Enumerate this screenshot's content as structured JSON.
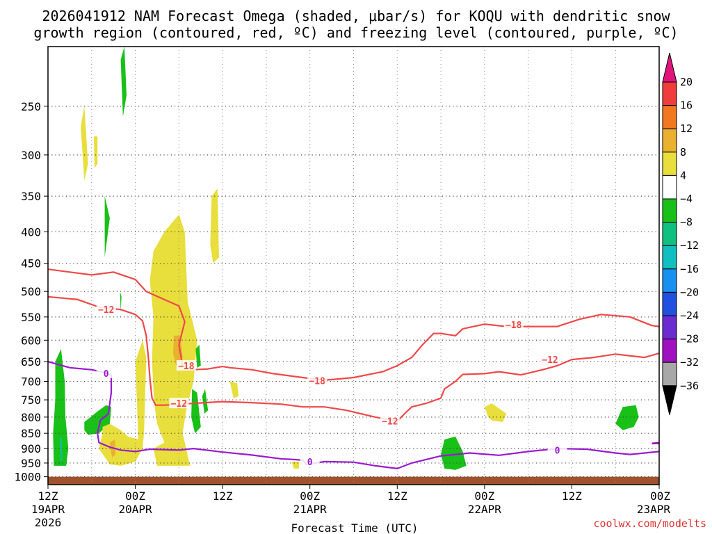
{
  "chart_data": {
    "type": "contour-time-section",
    "title_lines": [
      "2026041912 NAM Forecast Omega (shaded, μbar/s) for KOQU with dendritic snow",
      "growth region (contoured, red, ºC) and freezing level (contoured, purple, ºC)"
    ],
    "xlabel": "Forecast Time (UTC)",
    "x_hours_range": [
      0,
      84
    ],
    "x_ticks": [
      {
        "h": 0,
        "l1": "12Z",
        "l2": "19APR",
        "l3": "2026"
      },
      {
        "h": 12,
        "l1": "00Z",
        "l2": "20APR",
        "l3": ""
      },
      {
        "h": 24,
        "l1": "12Z",
        "l2": "",
        "l3": ""
      },
      {
        "h": 36,
        "l1": "00Z",
        "l2": "21APR",
        "l3": ""
      },
      {
        "h": 48,
        "l1": "12Z",
        "l2": "",
        "l3": ""
      },
      {
        "h": 60,
        "l1": "00Z",
        "l2": "22APR",
        "l3": ""
      },
      {
        "h": 72,
        "l1": "12Z",
        "l2": "",
        "l3": ""
      },
      {
        "h": 84,
        "l1": "00Z",
        "l2": "23APR",
        "l3": ""
      }
    ],
    "y_ticks": [
      250,
      300,
      350,
      400,
      450,
      500,
      550,
      600,
      650,
      700,
      750,
      800,
      850,
      900,
      950,
      1000
    ],
    "y_range_hpa": [
      200,
      1030
    ],
    "colorbar": {
      "labels": [
        "20",
        "16",
        "12",
        "8",
        "4",
        "−4",
        "−8",
        "−12",
        "−16",
        "−20",
        "−24",
        "−28",
        "−32",
        "−36"
      ],
      "colors": [
        "#e0147a",
        "#f03c3c",
        "#f07820",
        "#eab030",
        "#e8de3c",
        "#ffffff",
        "#18c018",
        "#10c080",
        "#10c0c0",
        "#1890f0",
        "#2050e0",
        "#6a2cd0",
        "#a010c0",
        "#a8a8a8",
        "#000000"
      ]
    },
    "contours": {
      "dgz_minus12": {
        "label": "−12",
        "color": "#f04848",
        "segments": [
          [
            [
              0,
              510
            ],
            [
              4,
              515
            ],
            [
              7,
              530
            ],
            [
              10,
              535
            ],
            [
              12,
              545
            ],
            [
              13,
              558
            ],
            [
              13.5,
              590
            ],
            [
              13.8,
              640
            ],
            [
              14,
              690
            ],
            [
              14.3,
              745
            ],
            [
              14.8,
              765
            ],
            [
              16,
              765
            ],
            [
              20,
              760
            ],
            [
              24,
              755
            ],
            [
              28,
              758
            ],
            [
              32,
              762
            ],
            [
              35,
              770
            ],
            [
              38,
              770
            ],
            [
              41,
              780
            ],
            [
              45,
              800
            ],
            [
              48,
              812
            ]
          ],
          [
            [
              48,
              812
            ],
            [
              49,
              790
            ],
            [
              50,
              770
            ],
            [
              52,
              760
            ],
            [
              54,
              745
            ],
            [
              54.5,
              720
            ],
            [
              56,
              700
            ],
            [
              57,
              682
            ],
            [
              60,
              680
            ],
            [
              62,
              675
            ],
            [
              65,
              683
            ],
            [
              68,
              670
            ],
            [
              70,
              660
            ],
            [
              72,
              645
            ],
            [
              75,
              640
            ],
            [
              78,
              632
            ],
            [
              82,
              640
            ],
            [
              84,
              630
            ]
          ]
        ],
        "labels": [
          [
            8,
            535
          ],
          [
            18,
            760
          ],
          [
            47,
            812
          ],
          [
            69,
            645
          ]
        ]
      },
      "dgz_minus18": {
        "label": "−18",
        "color": "#f04848",
        "segments": [
          [
            [
              0,
              460
            ],
            [
              3,
              465
            ],
            [
              6,
              470
            ],
            [
              9,
              465
            ],
            [
              12,
              478
            ],
            [
              13.5,
              500
            ],
            [
              18,
              528
            ],
            [
              18.8,
              560
            ],
            [
              18,
              610
            ],
            [
              18.5,
              660
            ],
            [
              20,
              670
            ],
            [
              22,
              668
            ],
            [
              24,
              662
            ],
            [
              25,
              665
            ],
            [
              28,
              670
            ],
            [
              31,
              680
            ],
            [
              35,
              690
            ],
            [
              38,
              697
            ],
            [
              42,
              690
            ],
            [
              46,
              675
            ],
            [
              48,
              660
            ]
          ],
          [
            [
              48,
              660
            ],
            [
              50,
              640
            ],
            [
              51.5,
              610
            ],
            [
              53,
              585
            ],
            [
              54,
              585
            ],
            [
              56,
              590
            ],
            [
              57,
              575
            ],
            [
              60,
              565
            ],
            [
              63,
              570
            ],
            [
              66,
              570
            ],
            [
              70,
              570
            ],
            [
              73,
              555
            ],
            [
              76,
              545
            ],
            [
              80,
              550
            ],
            [
              83,
              568
            ],
            [
              84,
              570
            ]
          ]
        ],
        "labels": [
          [
            19,
            660
          ],
          [
            37,
            698
          ],
          [
            64,
            566
          ]
        ]
      },
      "freezing_level_0": {
        "label": "0",
        "color": "#9a1ad0",
        "segments": [
          [
            [
              0,
              650
            ],
            [
              3,
              665
            ],
            [
              6,
              670
            ],
            [
              8,
              678
            ],
            [
              8.7,
              685
            ],
            [
              8.7,
              730
            ],
            [
              8.3,
              790
            ],
            [
              7.2,
              810
            ],
            [
              6.8,
              850
            ],
            [
              7,
              880
            ],
            [
              8.5,
              895
            ],
            [
              10,
              905
            ],
            [
              12,
              910
            ],
            [
              14,
              902
            ],
            [
              18,
              905
            ],
            [
              20,
              900
            ],
            [
              24,
              912
            ],
            [
              28,
              922
            ],
            [
              32,
              935
            ],
            [
              34,
              938
            ],
            [
              35,
              940
            ],
            [
              35.5,
              955
            ],
            [
              38,
              945
            ],
            [
              42,
              947
            ],
            [
              45,
              960
            ],
            [
              48,
              970
            ],
            [
              50,
              950
            ],
            [
              54,
              925
            ],
            [
              58,
              915
            ],
            [
              62,
              923
            ],
            [
              66,
              910
            ],
            [
              70,
              900
            ],
            [
              74,
              902
            ],
            [
              78,
              915
            ],
            [
              80,
              920
            ],
            [
              84,
              910
            ]
          ]
        ],
        "labels": [
          [
            8,
            679
          ],
          [
            36,
            945
          ],
          [
            70,
            905
          ]
        ]
      }
    },
    "omega_areas": [
      {
        "value": 6,
        "pts": [
          [
            4.5,
            270
          ],
          [
            5,
            250
          ],
          [
            5.5,
            310
          ],
          [
            5,
            330
          ]
        ]
      },
      {
        "value": 6,
        "pts": [
          [
            6.3,
            280
          ],
          [
            6.8,
            280
          ],
          [
            6.8,
            310
          ],
          [
            6.4,
            315
          ]
        ]
      },
      {
        "value": -6,
        "pts": [
          [
            10,
            210
          ],
          [
            10.5,
            200
          ],
          [
            10.8,
            240
          ],
          [
            10.3,
            260
          ]
        ]
      },
      {
        "value": -6,
        "pts": [
          [
            7.8,
            350
          ],
          [
            8.5,
            380
          ],
          [
            7.8,
            440
          ]
        ]
      },
      {
        "value": -6,
        "pts": [
          [
            9.9,
            500
          ],
          [
            10.1,
            510
          ],
          [
            10,
            540
          ]
        ]
      },
      {
        "value": -6,
        "pts": [
          [
            1,
            650
          ],
          [
            1.8,
            620
          ],
          [
            2.3,
            700
          ],
          [
            2.4,
            800
          ],
          [
            2.8,
            900
          ],
          [
            2.5,
            960
          ],
          [
            0.8,
            960
          ],
          [
            0.7,
            850
          ],
          [
            1,
            750
          ]
        ]
      },
      {
        "value": -10,
        "pts": [
          [
            1.6,
            870
          ],
          [
            1.9,
            860
          ],
          [
            2,
            940
          ],
          [
            1.7,
            945
          ]
        ]
      },
      {
        "value": -6,
        "pts": [
          [
            5,
            815
          ],
          [
            7,
            780
          ],
          [
            8,
            765
          ],
          [
            8.7,
            770
          ],
          [
            8.5,
            820
          ],
          [
            7,
            850
          ],
          [
            5.5,
            855
          ],
          [
            5,
            840
          ]
        ]
      },
      {
        "value": 6,
        "pts": [
          [
            7.5,
            830
          ],
          [
            8.5,
            820
          ],
          [
            10,
            840
          ],
          [
            11,
            860
          ],
          [
            12.5,
            870
          ],
          [
            13,
            900
          ],
          [
            12,
            945
          ],
          [
            10,
            960
          ],
          [
            8.5,
            955
          ],
          [
            7,
            900
          ],
          [
            7.5,
            850
          ]
        ]
      },
      {
        "value": 10,
        "pts": [
          [
            8.5,
            880
          ],
          [
            9.2,
            870
          ],
          [
            9.3,
            920
          ],
          [
            8.8,
            930
          ]
        ]
      },
      {
        "value": 6,
        "pts": [
          [
            12,
            650
          ],
          [
            13,
            600
          ],
          [
            13.5,
            640
          ],
          [
            13.2,
            850
          ],
          [
            13,
            900
          ],
          [
            12.5,
            920
          ]
        ]
      },
      {
        "value": 6,
        "pts": [
          [
            14.5,
            430
          ],
          [
            16,
            400
          ],
          [
            18,
            375
          ],
          [
            18.8,
            400
          ],
          [
            19.2,
            520
          ],
          [
            20.5,
            600
          ],
          [
            20,
            700
          ],
          [
            19,
            780
          ],
          [
            18.5,
            850
          ],
          [
            19,
            900
          ],
          [
            19.5,
            960
          ],
          [
            15,
            960
          ],
          [
            14.5,
            900
          ],
          [
            16,
            880
          ],
          [
            15,
            820
          ],
          [
            14.6,
            760
          ],
          [
            14.3,
            650
          ],
          [
            14.5,
            550
          ],
          [
            14,
            480
          ]
        ]
      },
      {
        "value": 10,
        "pts": [
          [
            17.3,
            590
          ],
          [
            18.2,
            590
          ],
          [
            18.5,
            640
          ],
          [
            17.6,
            660
          ],
          [
            17.2,
            630
          ]
        ]
      },
      {
        "value": -6,
        "pts": [
          [
            20.3,
            620
          ],
          [
            20.8,
            610
          ],
          [
            21,
            660
          ],
          [
            20.5,
            665
          ]
        ]
      },
      {
        "value": -6,
        "pts": [
          [
            19.8,
            720
          ],
          [
            20.5,
            730
          ],
          [
            21,
            830
          ],
          [
            20.2,
            850
          ],
          [
            19.7,
            800
          ]
        ]
      },
      {
        "value": -6,
        "pts": [
          [
            21.2,
            740
          ],
          [
            21.6,
            720
          ],
          [
            22,
            780
          ],
          [
            21.5,
            790
          ]
        ]
      },
      {
        "value": 6,
        "pts": [
          [
            22.5,
            350
          ],
          [
            23.3,
            340
          ],
          [
            23.5,
            440
          ],
          [
            22.7,
            450
          ],
          [
            22.3,
            420
          ]
        ]
      },
      {
        "value": 6,
        "pts": [
          [
            25,
            700
          ],
          [
            26,
            705
          ],
          [
            26.2,
            740
          ],
          [
            25.5,
            745
          ]
        ]
      },
      {
        "value": 6,
        "pts": [
          [
            33.5,
            945
          ],
          [
            34.5,
            945
          ],
          [
            34.5,
            970
          ],
          [
            33.8,
            970
          ]
        ]
      },
      {
        "value": -6,
        "pts": [
          [
            54.5,
            870
          ],
          [
            56,
            860
          ],
          [
            57,
            910
          ],
          [
            57.5,
            960
          ],
          [
            56,
            975
          ],
          [
            54.5,
            970
          ],
          [
            54,
            920
          ]
        ]
      },
      {
        "value": 6,
        "pts": [
          [
            60,
            770
          ],
          [
            61,
            760
          ],
          [
            63,
            790
          ],
          [
            62.5,
            815
          ],
          [
            61,
            810
          ],
          [
            60.5,
            800
          ]
        ]
      },
      {
        "value": -6,
        "pts": [
          [
            79,
            770
          ],
          [
            80.8,
            765
          ],
          [
            81.2,
            800
          ],
          [
            80.5,
            830
          ],
          [
            79,
            840
          ],
          [
            78,
            820
          ]
        ]
      },
      {
        "value": -28,
        "pts": [
          [
            83,
            880
          ],
          [
            84,
            878
          ],
          [
            84,
            885
          ],
          [
            83,
            886
          ]
        ]
      }
    ],
    "terrain": {
      "color": "#a0522d",
      "pressure_top": 1000
    }
  },
  "credit": "coolwx.com/modelts"
}
